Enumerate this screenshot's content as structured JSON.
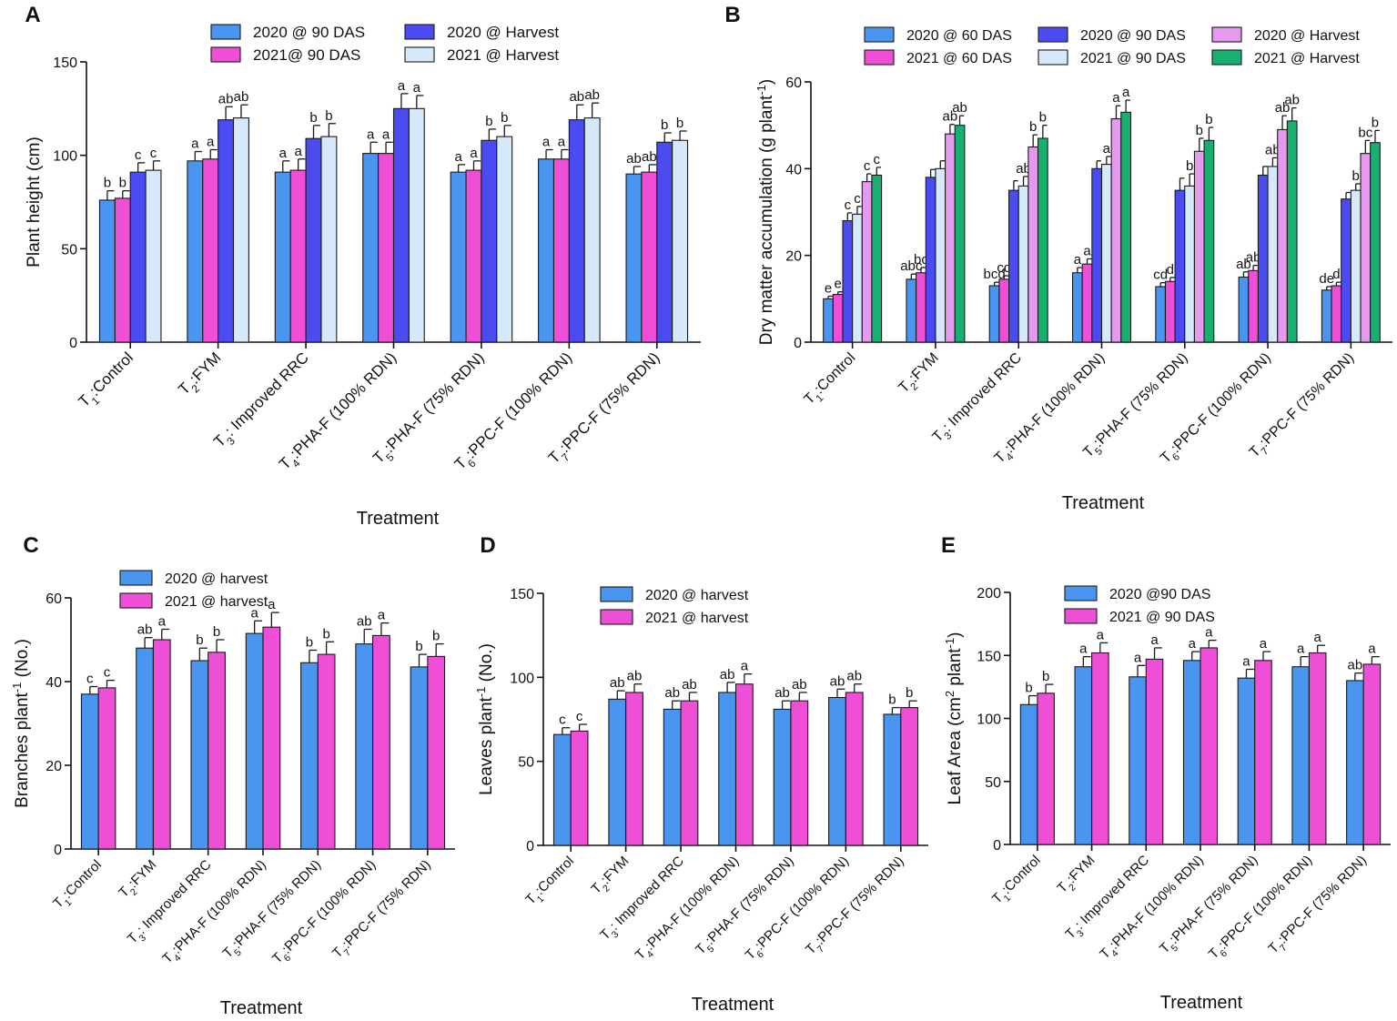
{
  "colors": {
    "blue": "#4a95f0",
    "pink": "#ef4fd6",
    "darkblue": "#4b4bf2",
    "lightblue": "#d6e9fb",
    "lavender": "#e59af0",
    "green": "#17b06f"
  },
  "chart_data": [
    {
      "panel": "A",
      "type": "bar",
      "ylabel": "Plant height (cm)",
      "xlabel": "Treatment",
      "ylim": [
        0,
        150
      ],
      "yticks": [
        0,
        50,
        100,
        150
      ],
      "legend_columns": 2,
      "categories": [
        {
          "letter": "1",
          "label": ":Control"
        },
        {
          "letter": "2",
          "label": ":FYM"
        },
        {
          "letter": "3",
          "label": ": Improved RRC"
        },
        {
          "letter": "4",
          "label": ":PHA-F (100% RDN)"
        },
        {
          "letter": "5",
          "label": ":PHA-F (75% RDN)"
        },
        {
          "letter": "6",
          "label": ":PPC-F (100% RDN)"
        },
        {
          "letter": "7",
          "label": ":PPC-F (75% RDN)"
        }
      ],
      "series": [
        {
          "name": "2020 @ 90 DAS",
          "color": "blue",
          "values": [
            76,
            97,
            91,
            101,
            91,
            98,
            90
          ],
          "errors": [
            5,
            5,
            6,
            6,
            4,
            5,
            4
          ],
          "letters": [
            "b",
            "a",
            "a",
            "a",
            "a",
            "a",
            "ab"
          ]
        },
        {
          "name": "2021@ 90 DAS",
          "color": "pink",
          "values": [
            77,
            98,
            92,
            101,
            92,
            98,
            91
          ],
          "errors": [
            4,
            5,
            6,
            6,
            5,
            5,
            4
          ],
          "letters": [
            "b",
            "a",
            "a",
            "a",
            "a",
            "a",
            "ab"
          ]
        },
        {
          "name": "2020 @ Harvest",
          "color": "darkblue",
          "values": [
            91,
            119,
            109,
            125,
            108,
            119,
            107
          ],
          "errors": [
            5,
            7,
            7,
            8,
            6,
            8,
            5
          ],
          "letters": [
            "c",
            "ab",
            "b",
            "a",
            "b",
            "ab",
            "b"
          ]
        },
        {
          "name": "2021 @ Harvest",
          "color": "lightblue",
          "values": [
            92,
            120,
            110,
            125,
            110,
            120,
            108
          ],
          "errors": [
            5,
            7,
            7,
            7,
            6,
            8,
            5
          ],
          "letters": [
            "c",
            "ab",
            "b",
            "a",
            "b",
            "ab",
            "b"
          ]
        }
      ]
    },
    {
      "panel": "B",
      "type": "bar",
      "ylabel": "Dry matter accumulation (g plant",
      "ylabel_sup": "-1",
      "ylabel_end": ")",
      "xlabel": "Treatment",
      "ylim": [
        0,
        60
      ],
      "yticks": [
        0,
        20,
        40,
        60
      ],
      "legend_columns": 3,
      "categories": [
        {
          "letter": "1",
          "label": ":Control"
        },
        {
          "letter": "2",
          "label": ":FYM"
        },
        {
          "letter": "3",
          "label": ": Improved RRC"
        },
        {
          "letter": "4",
          "label": ":PHA-F (100% RDN)"
        },
        {
          "letter": "5",
          "label": ":PHA-F (75% RDN)"
        },
        {
          "letter": "6",
          "label": ":PPC-F (100% RDN)"
        },
        {
          "letter": "7",
          "label": ":PPC-F (75% RDN)"
        }
      ],
      "series": [
        {
          "name": "2020 @ 60 DAS",
          "color": "blue",
          "values": [
            10,
            14.5,
            13,
            16,
            12.8,
            15,
            12
          ],
          "errors": [
            0.6,
            1.2,
            0.8,
            1.2,
            0.9,
            1.2,
            0.8
          ],
          "letters": [
            "e",
            "abc",
            "bcd",
            "a",
            "cd",
            "ab",
            "de"
          ]
        },
        {
          "name": "2021 @ 60 DAS",
          "color": "pink",
          "values": [
            11,
            16,
            14.5,
            18,
            14,
            16.5,
            13
          ],
          "errors": [
            0.6,
            1.2,
            0.8,
            1.2,
            0.9,
            1.2,
            0.8
          ],
          "letters": [
            "e",
            "bc",
            "cd",
            "a",
            "d",
            "ab",
            "d"
          ]
        },
        {
          "name": "2020 @ 90 DAS",
          "color": "darkblue",
          "values": [
            28,
            38,
            35,
            40,
            35,
            38.5,
            33
          ],
          "errors": [
            1.8,
            1.8,
            2.2,
            1.8,
            2.8,
            2,
            1.5
          ],
          "letters": [
            "c",
            "",
            "",
            "",
            "",
            "",
            ""
          ]
        },
        {
          "name": "2021 @ 90 DAS",
          "color": "lightblue",
          "values": [
            29.5,
            40,
            36,
            41,
            36,
            40.5,
            35
          ],
          "errors": [
            1.8,
            1.8,
            2.2,
            1.8,
            2.8,
            2,
            1.5
          ],
          "letters": [
            "c",
            "",
            "ab",
            "a",
            "b",
            "ab",
            "b"
          ]
        },
        {
          "name": "2020 @ Harvest",
          "color": "lavender",
          "values": [
            37,
            48,
            45,
            51.5,
            44,
            49,
            43.5
          ],
          "errors": [
            1.8,
            2.2,
            2.8,
            3,
            3,
            3.2,
            3
          ],
          "letters": [
            "c",
            "ab",
            "b",
            "a",
            "b",
            "ab",
            "bc"
          ]
        },
        {
          "name": "2021 @ Harvest",
          "color": "green",
          "values": [
            38.5,
            50,
            47,
            53,
            46.5,
            51,
            46
          ],
          "errors": [
            1.8,
            2.2,
            3,
            2.8,
            3,
            3,
            2.8
          ],
          "letters": [
            "c",
            "ab",
            "b",
            "a",
            "b",
            "ab",
            "b"
          ]
        }
      ]
    },
    {
      "panel": "C",
      "type": "bar",
      "ylabel": "Branches plant",
      "ylabel_sup": "-1",
      "ylabel_end": " (No.)",
      "xlabel": "Treatment",
      "ylim": [
        0,
        60
      ],
      "yticks": [
        0,
        20,
        40,
        60
      ],
      "legend_columns": 2,
      "categories": [
        {
          "letter": "1",
          "label": ":Control"
        },
        {
          "letter": "2",
          "label": ":FYM"
        },
        {
          "letter": "3",
          "label": ": Improved RRC"
        },
        {
          "letter": "4",
          "label": ":PHA-F (100% RDN)"
        },
        {
          "letter": "5",
          "label": ":PHA-F (75% RDN)"
        },
        {
          "letter": "6",
          "label": ":PPC-F (100% RDN)"
        },
        {
          "letter": "7",
          "label": ":PPC-F (75% RDN)"
        }
      ],
      "series": [
        {
          "name": "2020 @ harvest",
          "color": "blue",
          "values": [
            37,
            48,
            45,
            51.5,
            44.5,
            49,
            43.5
          ],
          "errors": [
            1.8,
            2.5,
            3,
            3,
            3,
            3.5,
            3
          ],
          "letters": [
            "c",
            "ab",
            "b",
            "a",
            "b",
            "ab",
            "b"
          ]
        },
        {
          "name": "2021 @ harvest",
          "color": "pink",
          "values": [
            38.5,
            50,
            47,
            53,
            46.5,
            51,
            46
          ],
          "errors": [
            1.8,
            2.5,
            3,
            3.5,
            3,
            3,
            3
          ],
          "letters": [
            "c",
            "a",
            "b",
            "a",
            "b",
            "a",
            "b"
          ]
        }
      ]
    },
    {
      "panel": "D",
      "type": "bar",
      "ylabel": "Leaves plant",
      "ylabel_sup": "-1",
      "ylabel_end": " (No.)",
      "xlabel": "Treatment",
      "ylim": [
        0,
        150
      ],
      "yticks": [
        0,
        50,
        100,
        150
      ],
      "legend_columns": 2,
      "categories": [
        {
          "letter": "1",
          "label": ":Control"
        },
        {
          "letter": "2",
          "label": ":FYM"
        },
        {
          "letter": "3",
          "label": ": Improved RRC"
        },
        {
          "letter": "4",
          "label": ":PHA-F (100% RDN)"
        },
        {
          "letter": "5",
          "label": ":PHA-F (75% RDN)"
        },
        {
          "letter": "6",
          "label": ":PPC-F (100% RDN)"
        },
        {
          "letter": "7",
          "label": ":PPC-F (75% RDN)"
        }
      ],
      "series": [
        {
          "name": "2020 @ harvest",
          "color": "blue",
          "values": [
            66,
            87,
            81,
            91,
            81,
            88,
            78
          ],
          "errors": [
            4,
            5,
            5,
            6,
            5,
            5,
            4
          ],
          "letters": [
            "c",
            "ab",
            "ab",
            "ab",
            "ab",
            "ab",
            "b"
          ]
        },
        {
          "name": "2021 @ harvest",
          "color": "pink",
          "values": [
            68,
            91,
            86,
            96,
            86,
            91,
            82
          ],
          "errors": [
            4,
            5,
            5,
            6,
            5,
            5,
            4
          ],
          "letters": [
            "c",
            "ab",
            "ab",
            "a",
            "ab",
            "ab",
            "b"
          ]
        }
      ]
    },
    {
      "panel": "E",
      "type": "bar",
      "ylabel": "Leaf Area (cm",
      "ylabel_sup": "2",
      "ylabel_mid": " plant",
      "ylabel_sup2": "-1",
      "ylabel_end": ")",
      "xlabel": "Treatment",
      "ylim": [
        0,
        200
      ],
      "yticks": [
        0,
        50,
        100,
        150,
        200
      ],
      "legend_columns": 2,
      "categories": [
        {
          "letter": "1",
          "label": ":Control"
        },
        {
          "letter": "2",
          "label": ":FYM"
        },
        {
          "letter": "3",
          "label": ": Improved RRC"
        },
        {
          "letter": "4",
          "label": ":PHA-F (100% RDN)"
        },
        {
          "letter": "5",
          "label": ":PHA-F (75% RDN)"
        },
        {
          "letter": "6",
          "label": ":PPC-F (100% RDN)"
        },
        {
          "letter": "7",
          "label": ":PPC-F (75% RDN)"
        }
      ],
      "series": [
        {
          "name": "2020 @90 DAS",
          "color": "blue",
          "values": [
            111,
            141,
            133,
            146,
            132,
            141,
            130
          ],
          "errors": [
            7,
            8,
            9,
            7,
            7,
            8,
            6
          ],
          "letters": [
            "b",
            "a",
            "a",
            "a",
            "a",
            "a",
            "ab"
          ]
        },
        {
          "name": "2021 @ 90 DAS",
          "color": "pink",
          "values": [
            120,
            152,
            147,
            156,
            146,
            152,
            143
          ],
          "errors": [
            7,
            8,
            9,
            6,
            7,
            6,
            6
          ],
          "letters": [
            "b",
            "a",
            "a",
            "a",
            "a",
            "a",
            "a"
          ]
        }
      ]
    }
  ]
}
